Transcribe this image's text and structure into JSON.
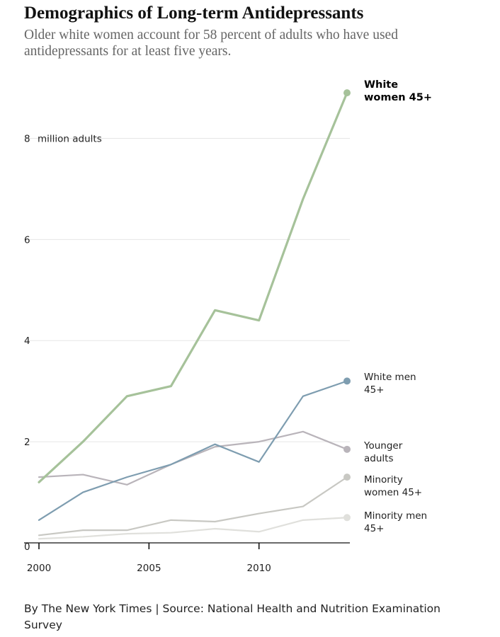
{
  "header": {
    "title": "Demographics of Long-term Antidepressants",
    "subtitle": "Older white women account for 58 percent of adults who have used antidepressants for at least five years."
  },
  "footer": {
    "source": "By The New York Times | Source: National Health and Nutrition Examination Survey"
  },
  "chart_data": {
    "type": "line",
    "title": "Demographics of Long-term Antidepressants",
    "xlabel": "",
    "ylabel": "million adults",
    "xlim": [
      2000,
      2014
    ],
    "ylim": [
      0,
      9
    ],
    "y_ticks": [
      {
        "value": 0,
        "label": "0"
      },
      {
        "value": 2,
        "label": "2"
      },
      {
        "value": 4,
        "label": "4"
      },
      {
        "value": 6,
        "label": "6"
      },
      {
        "value": 8,
        "label": "8"
      }
    ],
    "y_unit_label": "million adults",
    "x_ticks": [
      {
        "value": 2000,
        "label": "2000"
      },
      {
        "value": 2005,
        "label": "2005"
      },
      {
        "value": 2010,
        "label": "2010"
      }
    ],
    "x": [
      2000,
      2002,
      2004,
      2006,
      2008,
      2010,
      2012,
      2014
    ],
    "series": [
      {
        "name": "White women 45+",
        "label_lines": [
          "White",
          "women 45+"
        ],
        "bold": true,
        "color": "#a6c29a",
        "width": 3.2,
        "values": [
          1.2,
          2.0,
          2.9,
          3.1,
          4.6,
          4.4,
          6.8,
          8.9
        ]
      },
      {
        "name": "White men 45+",
        "label_lines": [
          "White men",
          "45+"
        ],
        "bold": false,
        "color": "#7e9db0",
        "width": 2.2,
        "values": [
          0.45,
          1.0,
          1.3,
          1.55,
          1.95,
          1.6,
          2.9,
          3.2
        ]
      },
      {
        "name": "Younger adults",
        "label_lines": [
          "Younger",
          "adults"
        ],
        "bold": false,
        "color": "#b9b4ba",
        "width": 2.2,
        "values": [
          1.3,
          1.35,
          1.15,
          1.55,
          1.9,
          2.0,
          2.2,
          1.85
        ]
      },
      {
        "name": "Minority women 45+",
        "label_lines": [
          "Minority",
          "women 45+"
        ],
        "bold": false,
        "color": "#c8c8c3",
        "width": 2.2,
        "values": [
          0.15,
          0.25,
          0.25,
          0.45,
          0.42,
          0.58,
          0.72,
          1.3
        ]
      },
      {
        "name": "Minority men 45+",
        "label_lines": [
          "Minority men",
          "45+"
        ],
        "bold": false,
        "color": "#e0e0dc",
        "width": 2.2,
        "values": [
          0.08,
          0.12,
          0.18,
          0.2,
          0.28,
          0.22,
          0.45,
          0.5
        ]
      }
    ]
  }
}
